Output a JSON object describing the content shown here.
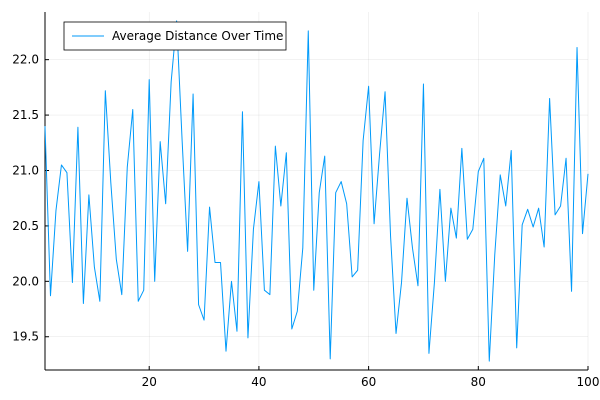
{
  "chart_data": {
    "type": "line",
    "title": "",
    "xlabel": "",
    "ylabel": "",
    "xlim": [
      1,
      100
    ],
    "ylim": [
      19.2,
      22.43
    ],
    "xticks": [
      20,
      40,
      60,
      80,
      100
    ],
    "yticks": [
      19.5,
      20.0,
      20.5,
      21.0,
      21.5,
      22.0
    ],
    "xtick_labels": [
      "20",
      "40",
      "60",
      "80",
      "100"
    ],
    "ytick_labels": [
      "19.5",
      "20.0",
      "20.5",
      "21.0",
      "21.5",
      "22.0"
    ],
    "grid": true,
    "legend_position": "top-left",
    "series": [
      {
        "name": "Average Distance Over Time",
        "color": "#009AFA",
        "x": [
          1,
          2,
          3,
          4,
          5,
          6,
          7,
          8,
          9,
          10,
          11,
          12,
          13,
          14,
          15,
          16,
          17,
          18,
          19,
          20,
          21,
          22,
          23,
          24,
          25,
          26,
          27,
          28,
          29,
          30,
          31,
          32,
          33,
          34,
          35,
          36,
          37,
          38,
          39,
          40,
          41,
          42,
          43,
          44,
          45,
          46,
          47,
          48,
          49,
          50,
          51,
          52,
          53,
          54,
          55,
          56,
          57,
          58,
          59,
          60,
          61,
          62,
          63,
          64,
          65,
          66,
          67,
          68,
          69,
          70,
          71,
          72,
          73,
          74,
          75,
          76,
          77,
          78,
          79,
          80,
          81,
          82,
          83,
          84,
          85,
          86,
          87,
          88,
          89,
          90,
          91,
          92,
          93,
          94,
          95,
          96,
          97,
          98,
          99,
          100
        ],
        "y": [
          21.4,
          19.87,
          20.64,
          21.05,
          20.98,
          19.99,
          21.39,
          19.8,
          20.78,
          20.13,
          19.82,
          21.72,
          20.89,
          20.2,
          19.88,
          21.03,
          21.55,
          19.82,
          19.92,
          21.82,
          20.0,
          21.26,
          20.7,
          21.8,
          22.35,
          21.27,
          20.27,
          21.69,
          19.79,
          19.65,
          20.67,
          20.17,
          20.17,
          19.37,
          20.0,
          19.55,
          21.53,
          19.49,
          20.47,
          20.9,
          19.92,
          19.88,
          21.22,
          20.68,
          21.16,
          19.57,
          19.73,
          20.3,
          22.26,
          19.92,
          20.8,
          21.13,
          19.3,
          20.8,
          20.9,
          20.7,
          20.04,
          20.1,
          21.27,
          21.76,
          20.52,
          21.15,
          21.71,
          20.41,
          19.53,
          19.99,
          20.75,
          20.3,
          19.96,
          21.78,
          19.35,
          19.99,
          20.83,
          20.0,
          20.66,
          20.39,
          21.2,
          20.38,
          20.47,
          20.99,
          21.11,
          19.28,
          20.24,
          20.96,
          20.68,
          21.18,
          19.4,
          20.51,
          20.65,
          20.49,
          20.66,
          20.31,
          21.65,
          20.6,
          20.68,
          21.11,
          19.91,
          22.11,
          20.43,
          20.97
        ]
      }
    ]
  }
}
